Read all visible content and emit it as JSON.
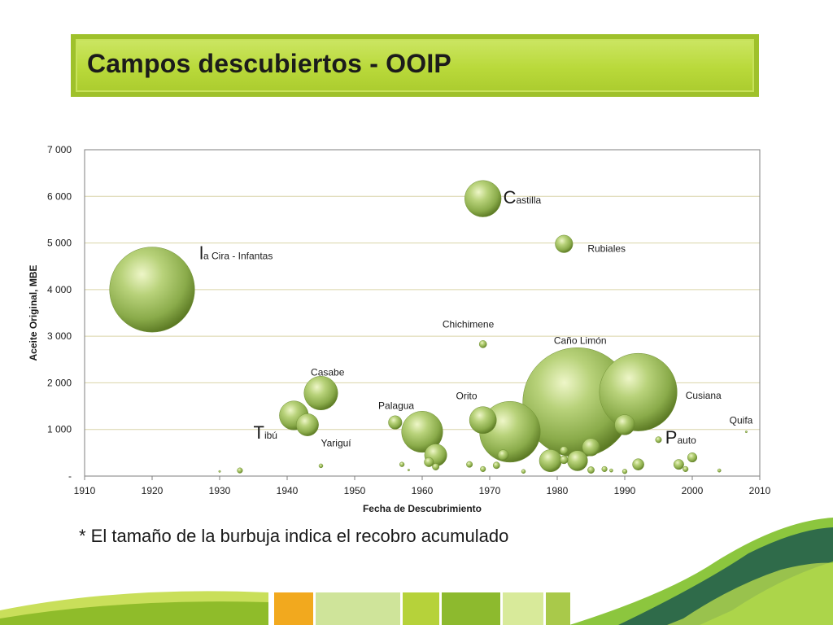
{
  "slide": {
    "title": "Campos descubiertos - OOIP",
    "footnote": "* El tamaño de la burbuja indica el recobro acumulado"
  },
  "colors": {
    "banner": "#b9d93a",
    "bubble_light": "#e6f2b0",
    "bubble_mid": "#a9c66a",
    "bubble_dark": "#5c7a24",
    "gridline": "#d9d4a8",
    "axis": "#7f7f7f"
  },
  "chart_data": {
    "type": "bubble",
    "xlabel": "Fecha de Descubrimiento",
    "ylabel": "Aceite Original, MBE",
    "xlim": [
      1910,
      2010
    ],
    "ylim": [
      0,
      7000
    ],
    "x_ticks": [
      "1910",
      "1920",
      "1930",
      "1940",
      "1950",
      "1960",
      "1970",
      "1980",
      "1990",
      "2000",
      "2010"
    ],
    "y_ticks": [
      "-",
      "1 000",
      "2 000",
      "3 000",
      "4 000",
      "5 000",
      "6 000",
      "7 000"
    ],
    "grid": true,
    "points": [
      {
        "x": 1920,
        "y": 4000,
        "size": 12.6
      },
      {
        "x": 1933,
        "y": 120,
        "size": 0.8
      },
      {
        "x": 1941,
        "y": 1300,
        "size": 4.3
      },
      {
        "x": 1943,
        "y": 1100,
        "size": 3.3
      },
      {
        "x": 1945,
        "y": 1780,
        "size": 5.0
      },
      {
        "x": 1945,
        "y": 220,
        "size": 0.6
      },
      {
        "x": 1956,
        "y": 1150,
        "size": 2.0
      },
      {
        "x": 1957,
        "y": 250,
        "size": 0.7
      },
      {
        "x": 1960,
        "y": 950,
        "size": 6.1
      },
      {
        "x": 1962,
        "y": 450,
        "size": 3.3
      },
      {
        "x": 1961,
        "y": 300,
        "size": 1.4
      },
      {
        "x": 1962,
        "y": 200,
        "size": 1.0
      },
      {
        "x": 1969,
        "y": 5950,
        "size": 5.4
      },
      {
        "x": 1969,
        "y": 2830,
        "size": 1.1
      },
      {
        "x": 1969,
        "y": 1200,
        "size": 4.0
      },
      {
        "x": 1967,
        "y": 250,
        "size": 0.9
      },
      {
        "x": 1969,
        "y": 150,
        "size": 0.8
      },
      {
        "x": 1973,
        "y": 950,
        "size": 9.0
      },
      {
        "x": 1972,
        "y": 450,
        "size": 1.6
      },
      {
        "x": 1971,
        "y": 230,
        "size": 1.0
      },
      {
        "x": 1981,
        "y": 4980,
        "size": 2.6
      },
      {
        "x": 1983,
        "y": 1580,
        "size": 16.2
      },
      {
        "x": 1979,
        "y": 330,
        "size": 3.3
      },
      {
        "x": 1981,
        "y": 550,
        "size": 1.2
      },
      {
        "x": 1981,
        "y": 350,
        "size": 1.2
      },
      {
        "x": 1983,
        "y": 330,
        "size": 3.0
      },
      {
        "x": 1985,
        "y": 620,
        "size": 2.6
      },
      {
        "x": 1985,
        "y": 130,
        "size": 1.0
      },
      {
        "x": 1987,
        "y": 150,
        "size": 0.8
      },
      {
        "x": 1992,
        "y": 1800,
        "size": 11.5
      },
      {
        "x": 1990,
        "y": 1100,
        "size": 3.0
      },
      {
        "x": 1992,
        "y": 250,
        "size": 1.7
      },
      {
        "x": 1990,
        "y": 100,
        "size": 0.7
      },
      {
        "x": 1995,
        "y": 780,
        "size": 0.9
      },
      {
        "x": 1998,
        "y": 250,
        "size": 1.5
      },
      {
        "x": 2000,
        "y": 400,
        "size": 1.4
      },
      {
        "x": 1999,
        "y": 150,
        "size": 0.8
      },
      {
        "x": 2004,
        "y": 120,
        "size": 0.5
      },
      {
        "x": 2008,
        "y": 950,
        "size": 0.3
      },
      {
        "x": 1958,
        "y": 130,
        "size": 0.3
      },
      {
        "x": 1930,
        "y": 100,
        "size": 0.3
      },
      {
        "x": 1975,
        "y": 100,
        "size": 0.6
      },
      {
        "x": 1988,
        "y": 120,
        "size": 0.5
      }
    ],
    "labels": [
      {
        "text": "la Cira - Infantas",
        "x": 1927,
        "y": 4650
      },
      {
        "text": "Castilla",
        "x": 1972,
        "y": 5850
      },
      {
        "text": "Rubiales",
        "x": 1984.5,
        "y": 4810
      },
      {
        "text": "Chichimene",
        "x": 1963,
        "y": 3190
      },
      {
        "text": "Caño Limón",
        "x": 1979.5,
        "y": 2840
      },
      {
        "text": "Casabe",
        "x": 1943.5,
        "y": 2160
      },
      {
        "text": "Palagua",
        "x": 1953.5,
        "y": 1440
      },
      {
        "text": "Orito",
        "x": 1965,
        "y": 1650
      },
      {
        "text": "Cusiana",
        "x": 1999,
        "y": 1660
      },
      {
        "text": "Quifa",
        "x": 2005.5,
        "y": 1130
      },
      {
        "text": "Tibú",
        "x": 1935,
        "y": 800
      },
      {
        "text": "Yariguí",
        "x": 1945,
        "y": 640
      },
      {
        "text": "Pauto",
        "x": 1996,
        "y": 700
      }
    ]
  }
}
